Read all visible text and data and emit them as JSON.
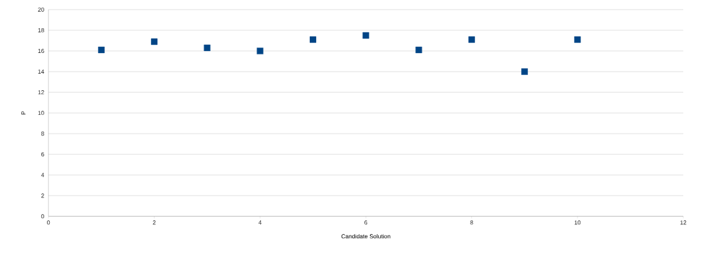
{
  "chart_data": {
    "type": "scatter",
    "xlabel": "Candidate Solution",
    "ylabel": "P",
    "x": [
      1,
      2,
      3,
      4,
      5,
      6,
      7,
      8,
      9,
      10
    ],
    "values": [
      16.1,
      16.9,
      16.3,
      16.0,
      17.1,
      17.5,
      16.1,
      17.1,
      14.0,
      17.1
    ],
    "color": "#004586",
    "marker": "square",
    "grid": "y",
    "xlim": [
      0,
      12
    ],
    "xticks": [
      0,
      2,
      4,
      6,
      8,
      10,
      12
    ],
    "ylim": [
      0,
      20
    ],
    "yticks": [
      0,
      2,
      4,
      6,
      8,
      10,
      12,
      14,
      16,
      18,
      20
    ]
  }
}
